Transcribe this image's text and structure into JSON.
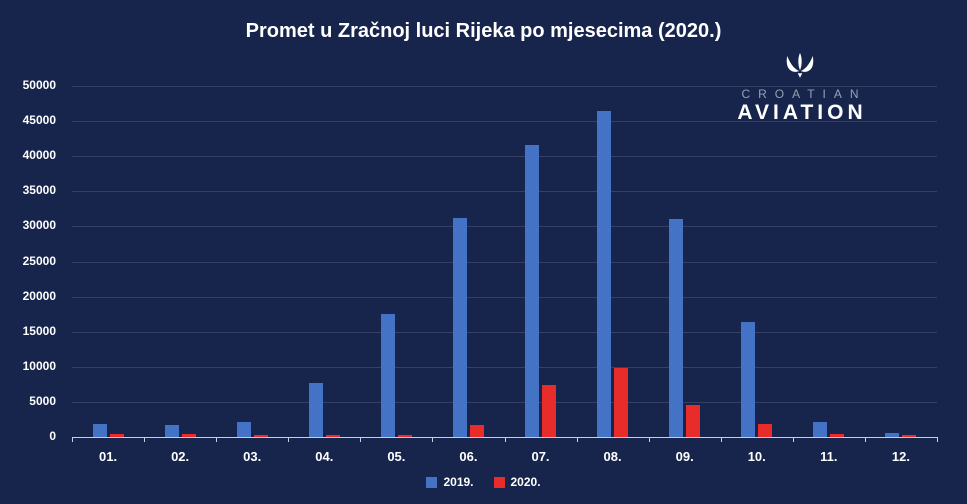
{
  "title": "Promet u Zračnoj luci Rijeka po mjesecima (2020.)",
  "logo": {
    "line1": "CROATIAN",
    "line2": "AVIATION"
  },
  "colors": {
    "background": "#17254d",
    "series_2019": "#4472c4",
    "series_2020": "#e82c2a",
    "gridline": "rgba(255,255,255,0.13)",
    "axis": "#c9ced9",
    "text": "#ffffff",
    "logo_muted": "#96a0b6"
  },
  "chart_data": {
    "type": "bar",
    "title": "Promet u Zračnoj luci Rijeka po mjesecima (2020.)",
    "categories": [
      "01.",
      "02.",
      "03.",
      "04.",
      "05.",
      "06.",
      "07.",
      "08.",
      "09.",
      "10.",
      "11.",
      "12."
    ],
    "series": [
      {
        "name": "2019.",
        "color": "#4472c4",
        "values": [
          1900,
          1700,
          2100,
          7700,
          17500,
          31200,
          41600,
          46500,
          31000,
          16400,
          2100,
          600
        ]
      },
      {
        "name": "2020.",
        "color": "#e82c2a",
        "values": [
          450,
          450,
          350,
          150,
          150,
          1700,
          7400,
          9800,
          4500,
          1850,
          400,
          350
        ]
      }
    ],
    "xlabel": "",
    "ylabel": "",
    "ylim": [
      0,
      50000
    ],
    "ytick_step": 5000,
    "grid": true,
    "legend_position": "bottom"
  }
}
